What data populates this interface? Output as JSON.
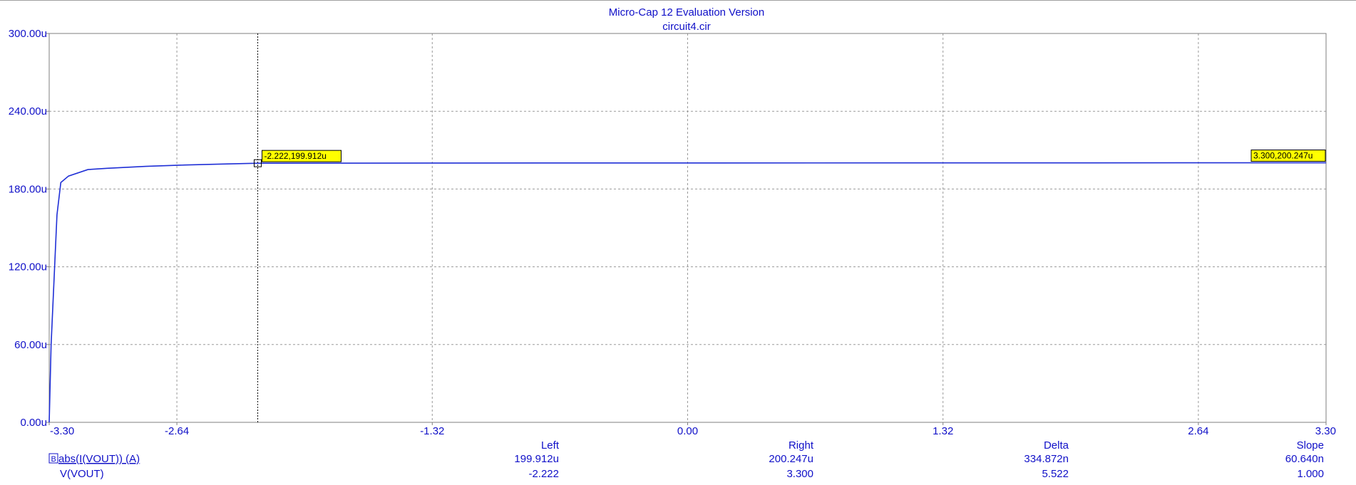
{
  "window": {
    "title": "Micro-Cap 12 Evaluation Version",
    "subtitle": "circuit4.cir"
  },
  "colors": {
    "text": "#1010c8",
    "trace": "#1f2fd6",
    "grid": "#9a9a9a",
    "cursor": "#000000",
    "tag_fill": "#ffff00",
    "background": "#ffffff"
  },
  "chart_data": {
    "type": "line",
    "title": "Micro-Cap 12 Evaluation Version",
    "subtitle": "circuit4.cir",
    "xlabel": "",
    "ylabel": "",
    "xlim": [
      -3.3,
      3.3
    ],
    "ylim": [
      0,
      300
    ],
    "x_ticks": [
      -3.3,
      -2.64,
      -1.32,
      0.0,
      1.32,
      2.64,
      3.3
    ],
    "x_tick_labels": [
      "-3.30",
      "-2.64",
      "-1.32",
      "0.00",
      "1.32",
      "2.64",
      "3.30"
    ],
    "y_ticks": [
      0,
      60,
      120,
      180,
      240,
      300
    ],
    "y_tick_labels": [
      "0.00u",
      "60.00u",
      "120.00u",
      "180.00u",
      "240.00u",
      "300.00u"
    ],
    "grid": true,
    "series": [
      {
        "name": "abs(I(VOUT)) (A)",
        "x": [
          -3.3,
          -3.29,
          -3.26,
          -3.24,
          -3.2,
          -3.1,
          -3.0,
          -2.8,
          -2.6,
          -2.4,
          -2.222,
          -1.32,
          0.0,
          1.32,
          2.64,
          3.3
        ],
        "y": [
          0,
          60,
          160,
          185,
          190,
          195,
          196,
          197.5,
          198.5,
          199.3,
          199.912,
          200.05,
          200.12,
          200.18,
          200.23,
          200.247
        ]
      }
    ],
    "cursors": [
      {
        "side": "left",
        "x": -2.222,
        "y": 199.912,
        "label": "-2.222,199.912u"
      },
      {
        "side": "right",
        "x": 3.3,
        "y": 200.247,
        "label": "3.300,200.247u"
      }
    ]
  },
  "readout": {
    "headers": {
      "left": "Left",
      "right": "Right",
      "delta": "Delta",
      "slope": "Slope"
    },
    "rows": [
      {
        "name": "abs(I(VOUT)) (A)",
        "left": "199.912u",
        "right": "200.247u",
        "delta": "334.872n",
        "slope": "60.640n"
      },
      {
        "name": "V(VOUT)",
        "left": "-2.222",
        "right": "3.300",
        "delta": "5.522",
        "slope": "1.000"
      }
    ]
  }
}
